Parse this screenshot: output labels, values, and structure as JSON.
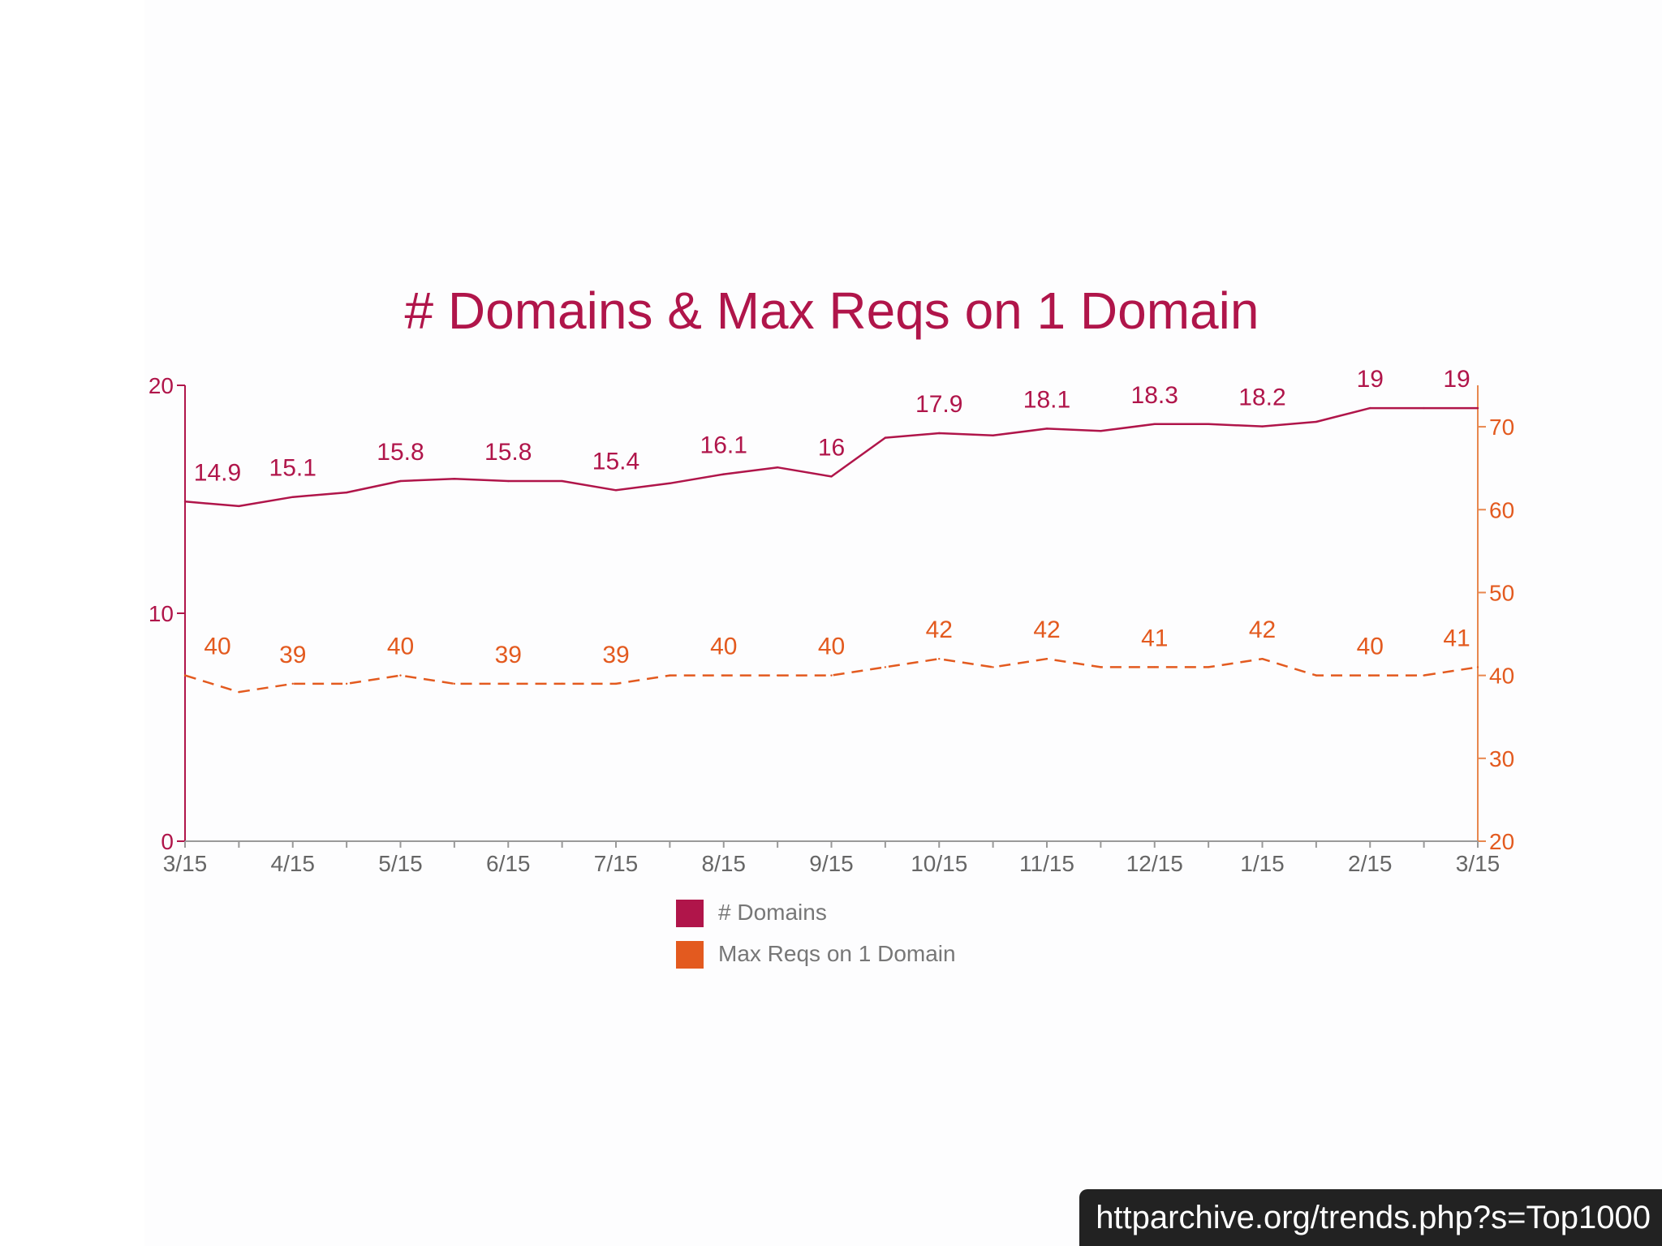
{
  "colors": {
    "domains": "#b0154a",
    "maxreqs": "#e35a1f",
    "tick_text": "#666666",
    "legend_text": "#777777",
    "axis_left": "#b0154a",
    "axis_right": "#e8874e"
  },
  "source_url": "httparchive.org/trends.php?s=Top1000",
  "chart_data": {
    "type": "line",
    "title": "# Domains & Max Reqs on 1 Domain",
    "x_tick_labels": [
      "3/15",
      "4/15",
      "5/15",
      "6/15",
      "7/15",
      "8/15",
      "9/15",
      "10/15",
      "11/15",
      "12/15",
      "1/15",
      "2/15",
      "3/15"
    ],
    "x_range": [
      0,
      24
    ],
    "y_left": {
      "range": [
        0,
        20
      ],
      "ticks": [
        0,
        10,
        20
      ]
    },
    "y_right": {
      "range": [
        20,
        75
      ],
      "ticks": [
        20,
        30,
        40,
        50,
        60,
        70
      ]
    },
    "legend": "bottom-center",
    "grid": false,
    "series": [
      {
        "name": "# Domains",
        "axis": "left",
        "style": "solid",
        "x": [
          0,
          1,
          2,
          3,
          4,
          5,
          6,
          7,
          8,
          9,
          10,
          11,
          12,
          13,
          14,
          15,
          16,
          17,
          18,
          19,
          20,
          21,
          22,
          23,
          24
        ],
        "y": [
          14.9,
          14.7,
          15.1,
          15.3,
          15.8,
          15.9,
          15.8,
          15.8,
          15.4,
          15.7,
          16.1,
          16.4,
          16.0,
          17.7,
          17.9,
          17.8,
          18.1,
          18.0,
          18.3,
          18.3,
          18.2,
          18.4,
          19.0,
          19.0,
          19.0
        ],
        "data_labels": [
          {
            "x": 0,
            "text": "14.9"
          },
          {
            "x": 2,
            "text": "15.1"
          },
          {
            "x": 4,
            "text": "15.8"
          },
          {
            "x": 6,
            "text": "15.8"
          },
          {
            "x": 8,
            "text": "15.4"
          },
          {
            "x": 10,
            "text": "16.1"
          },
          {
            "x": 12,
            "text": "16"
          },
          {
            "x": 14,
            "text": "17.9"
          },
          {
            "x": 16,
            "text": "18.1"
          },
          {
            "x": 18,
            "text": "18.3"
          },
          {
            "x": 20,
            "text": "18.2"
          },
          {
            "x": 22,
            "text": "19"
          },
          {
            "x": 24,
            "text": "19"
          }
        ]
      },
      {
        "name": "Max Reqs on 1 Domain",
        "axis": "right",
        "style": "dashed",
        "x": [
          0,
          1,
          2,
          3,
          4,
          5,
          6,
          7,
          8,
          9,
          10,
          11,
          12,
          13,
          14,
          15,
          16,
          17,
          18,
          19,
          20,
          21,
          22,
          23,
          24
        ],
        "y": [
          40,
          38,
          39,
          39,
          40,
          39,
          39,
          39,
          39,
          40,
          40,
          40,
          40,
          41,
          42,
          41,
          42,
          41,
          41,
          41,
          42,
          40,
          40,
          40,
          41
        ],
        "data_labels": [
          {
            "x": 0,
            "text": "40"
          },
          {
            "x": 2,
            "text": "39"
          },
          {
            "x": 4,
            "text": "40"
          },
          {
            "x": 6,
            "text": "39"
          },
          {
            "x": 8,
            "text": "39"
          },
          {
            "x": 10,
            "text": "40"
          },
          {
            "x": 12,
            "text": "40"
          },
          {
            "x": 14,
            "text": "42"
          },
          {
            "x": 16,
            "text": "42"
          },
          {
            "x": 18,
            "text": "41"
          },
          {
            "x": 20,
            "text": "42"
          },
          {
            "x": 22,
            "text": "40"
          },
          {
            "x": 24,
            "text": "41"
          }
        ]
      }
    ]
  }
}
